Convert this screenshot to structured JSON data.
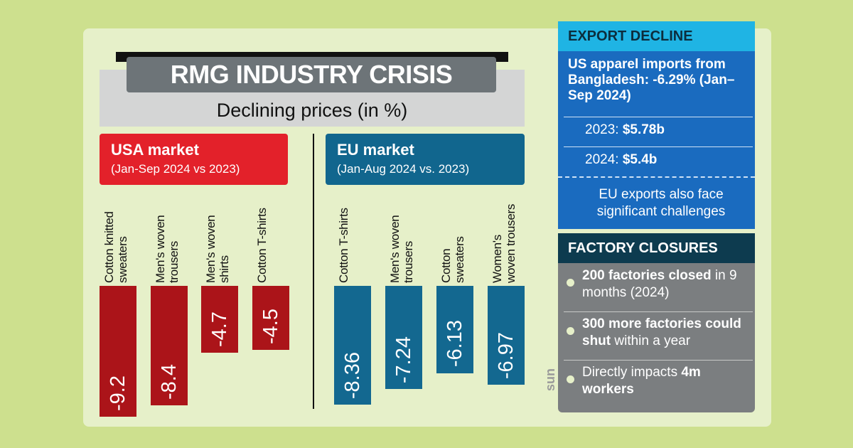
{
  "header": {
    "title": "RMG INDUSTRY CRISIS",
    "subtitle": "Declining prices (in %)"
  },
  "chart_data": [
    {
      "type": "bar",
      "title": "USA market",
      "subtitle": "(Jan-Sep 2024 vs 2023)",
      "categories": [
        "Cotton knitted sweaters",
        "Men's woven trousers",
        "Men's woven shirts",
        "Cotton T-shirts"
      ],
      "values": [
        -9.2,
        -8.4,
        -4.7,
        -4.5
      ],
      "color": "#ab1419",
      "header_color": "#e3212a",
      "ylim": [
        -10,
        0
      ]
    },
    {
      "type": "bar",
      "title": "EU market",
      "subtitle": "(Jan-Aug 2024 vs. 2023)",
      "categories": [
        "Cotton T-shirts",
        "Men's woven trousers",
        "Cotton sweaters",
        "Women's woven trousers"
      ],
      "values": [
        -8.36,
        -7.24,
        -6.13,
        -6.97
      ],
      "color": "#136890",
      "header_color": "#11668e",
      "ylim": [
        -10,
        0
      ]
    }
  ],
  "sidebar": {
    "export_decline": {
      "title": "EXPORT DECLINE",
      "lead": "US apparel imports from Bangladesh: -6.29% (Jan–Sep 2024)",
      "rows": [
        {
          "label": "2023:",
          "value": "$5.78b"
        },
        {
          "label": "2024:",
          "value": "$5.4b"
        }
      ],
      "note": "EU exports also face significant challenges"
    },
    "factory_closures": {
      "title": "FACTORY CLOSURES",
      "items": [
        [
          {
            "text": "200 factories closed",
            "bold": true
          },
          {
            "text": " in 9 months (2024)",
            "bold": false
          }
        ],
        [
          {
            "text": "300 more factories could shut",
            "bold": true
          },
          {
            "text": " within a year",
            "bold": false
          }
        ],
        [
          {
            "text": "Directly impacts ",
            "bold": false
          },
          {
            "text": "4m workers",
            "bold": true
          }
        ]
      ]
    }
  },
  "logo": "sun"
}
